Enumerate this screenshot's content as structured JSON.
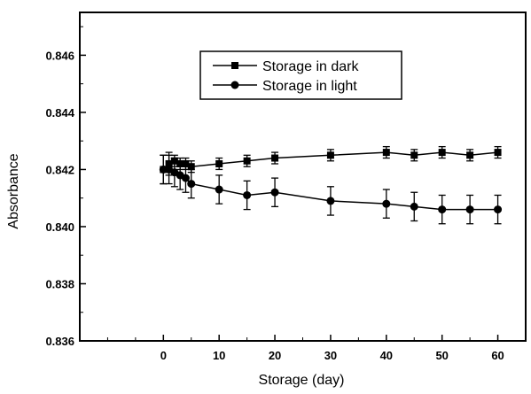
{
  "chart_data": {
    "type": "line",
    "xlabel": "Storage (day)",
    "ylabel": "Absorbance",
    "xlim": [
      -15,
      65
    ],
    "ylim": [
      0.836,
      0.8475
    ],
    "x_ticks": [
      0,
      10,
      20,
      30,
      40,
      50,
      60
    ],
    "y_ticks": [
      0.836,
      0.838,
      0.84,
      0.842,
      0.844,
      0.846
    ],
    "y_tick_labels": [
      "0.836",
      "0.838",
      "0.840",
      "0.842",
      "0.844",
      "0.846"
    ],
    "x_tick_labels": [
      "0",
      "10",
      "20",
      "30",
      "40",
      "50",
      "60"
    ],
    "grid": false,
    "legend_position": "top-center",
    "series": [
      {
        "name": "Storage in dark",
        "marker": "square",
        "color": "#000000",
        "x": [
          0,
          1,
          2,
          3,
          4,
          5,
          10,
          15,
          20,
          30,
          40,
          45,
          50,
          55,
          60
        ],
        "y": [
          0.842,
          0.8422,
          0.8423,
          0.8422,
          0.8422,
          0.8421,
          0.8422,
          0.8423,
          0.8424,
          0.8425,
          0.8426,
          0.8425,
          0.8426,
          0.8425,
          0.8426
        ],
        "error": [
          0.0005,
          0.0004,
          0.0002,
          0.0002,
          0.0002,
          0.0002,
          0.0002,
          0.0002,
          0.0002,
          0.0002,
          0.0002,
          0.0002,
          0.0002,
          0.0002,
          0.0002
        ]
      },
      {
        "name": "Storage in light",
        "marker": "circle",
        "color": "#000000",
        "x": [
          0,
          1,
          2,
          3,
          4,
          5,
          10,
          15,
          20,
          30,
          40,
          45,
          50,
          55,
          60
        ],
        "y": [
          0.842,
          0.842,
          0.8419,
          0.8418,
          0.8417,
          0.8415,
          0.8413,
          0.8411,
          0.8412,
          0.8409,
          0.8408,
          0.8407,
          0.8406,
          0.8406,
          0.8406
        ],
        "error": [
          0.0005,
          0.0005,
          0.0005,
          0.0005,
          0.0005,
          0.0005,
          0.0005,
          0.0005,
          0.0005,
          0.0005,
          0.0005,
          0.0005,
          0.0005,
          0.0005,
          0.0005
        ]
      }
    ]
  }
}
